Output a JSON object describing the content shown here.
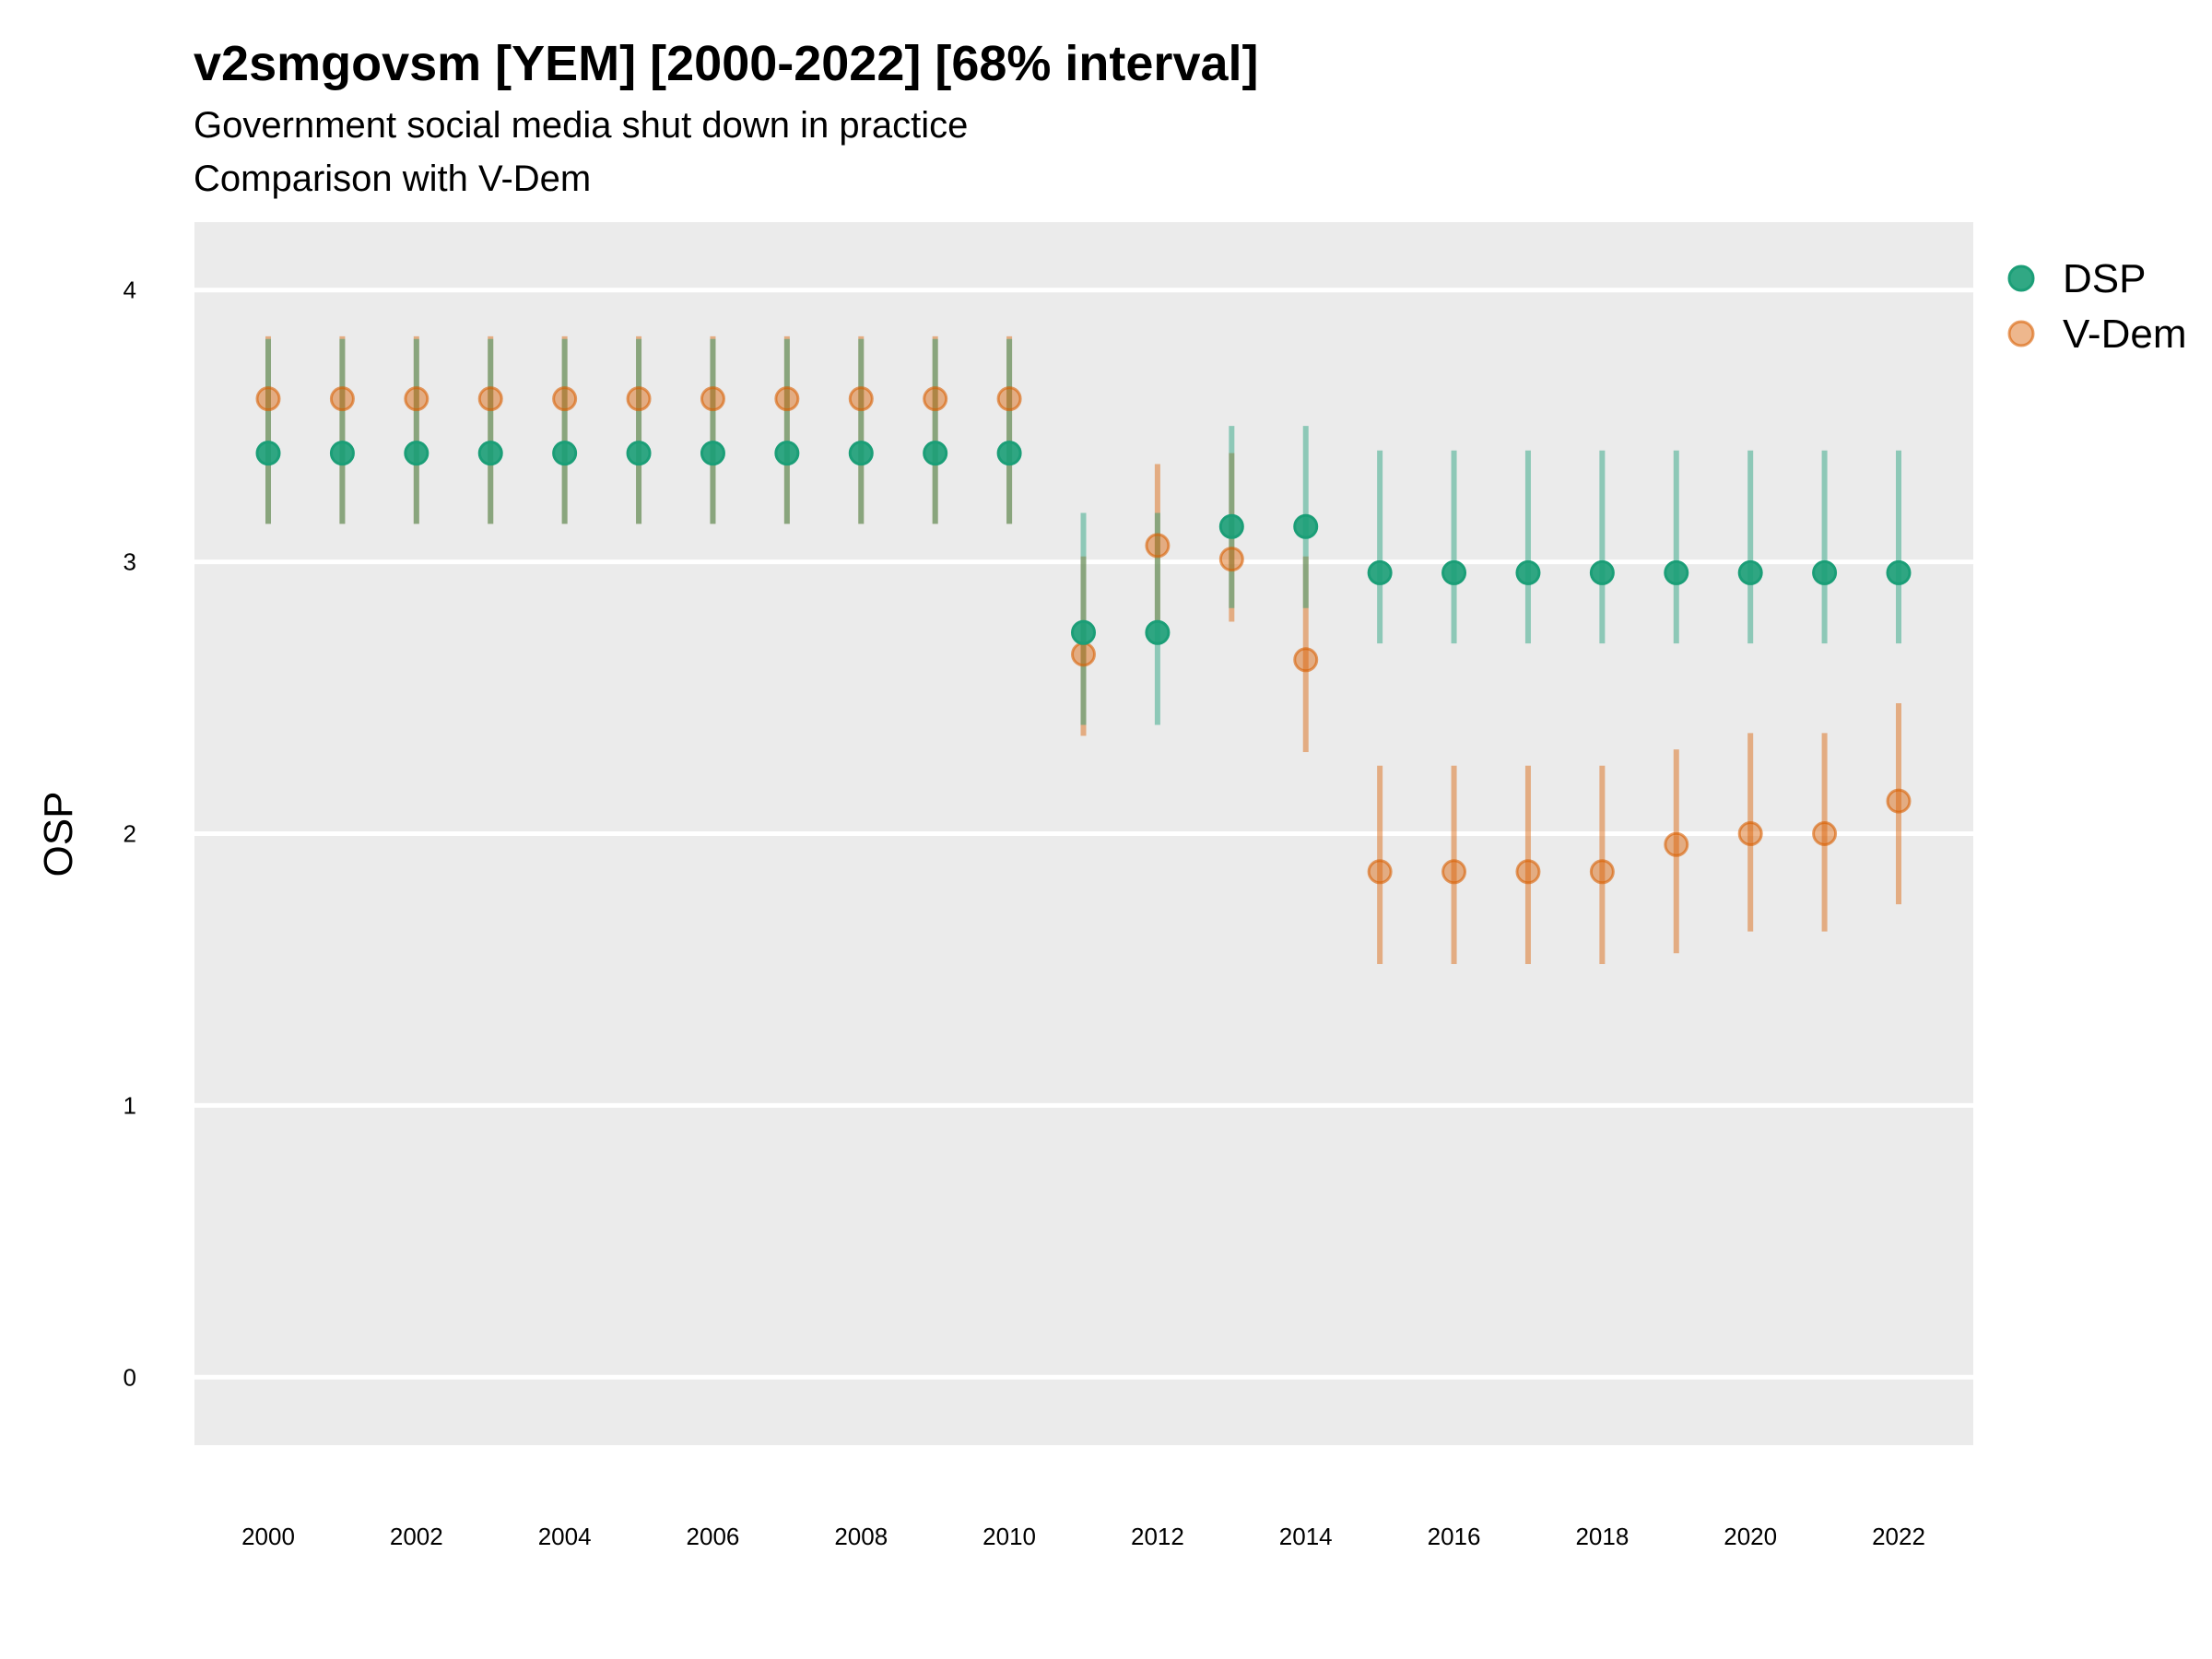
{
  "chart_data": {
    "type": "scatter",
    "title": "v2smgovsm [YEM] [2000-2022] [68% interval]",
    "subtitle": "Government social media shut down in practice",
    "subtitle2": "Comparison with V-Dem",
    "xlabel": "",
    "ylabel": "OSP",
    "ylim": [
      -0.25,
      4.25
    ],
    "yticks": [
      "0",
      "1",
      "2",
      "3",
      "4"
    ],
    "xticks": [
      "2000",
      "2002",
      "2004",
      "2006",
      "2008",
      "2010",
      "2012",
      "2014",
      "2016",
      "2018",
      "2020",
      "2022"
    ],
    "legend_position": "right",
    "x": [
      2000,
      2001,
      2002,
      2003,
      2004,
      2005,
      2006,
      2007,
      2008,
      2009,
      2010,
      2011,
      2012,
      2013,
      2014,
      2015,
      2016,
      2017,
      2018,
      2019,
      2020,
      2021,
      2022
    ],
    "series": [
      {
        "name": "DSP",
        "color": "#1b9e77",
        "values": [
          3.4,
          3.4,
          3.4,
          3.4,
          3.4,
          3.4,
          3.4,
          3.4,
          3.4,
          3.4,
          3.4,
          2.74,
          2.74,
          3.13,
          3.13,
          2.96,
          2.96,
          2.96,
          2.96,
          2.96,
          2.96,
          2.96,
          2.96
        ],
        "lower": [
          3.14,
          3.14,
          3.14,
          3.14,
          3.14,
          3.14,
          3.14,
          3.14,
          3.14,
          3.14,
          3.14,
          2.4,
          2.4,
          2.83,
          2.83,
          2.7,
          2.7,
          2.7,
          2.7,
          2.7,
          2.7,
          2.7,
          2.7
        ],
        "upper": [
          3.82,
          3.82,
          3.82,
          3.82,
          3.82,
          3.82,
          3.82,
          3.82,
          3.82,
          3.82,
          3.82,
          3.18,
          3.18,
          3.5,
          3.5,
          3.41,
          3.41,
          3.41,
          3.41,
          3.41,
          3.41,
          3.41,
          3.41
        ]
      },
      {
        "name": "V-Dem",
        "color": "#d95f02",
        "values": [
          3.6,
          3.6,
          3.6,
          3.6,
          3.6,
          3.6,
          3.6,
          3.6,
          3.6,
          3.6,
          3.6,
          2.66,
          3.06,
          3.01,
          2.64,
          1.86,
          1.86,
          1.86,
          1.86,
          1.96,
          2.0,
          2.0,
          2.12
        ],
        "lower": [
          3.14,
          3.14,
          3.14,
          3.14,
          3.14,
          3.14,
          3.14,
          3.14,
          3.14,
          3.14,
          3.14,
          2.36,
          2.78,
          2.78,
          2.3,
          1.52,
          1.52,
          1.52,
          1.52,
          1.56,
          1.64,
          1.64,
          1.74
        ],
        "upper": [
          3.83,
          3.83,
          3.83,
          3.83,
          3.83,
          3.83,
          3.83,
          3.83,
          3.83,
          3.83,
          3.83,
          3.02,
          3.36,
          3.4,
          3.02,
          2.25,
          2.25,
          2.25,
          2.25,
          2.31,
          2.37,
          2.37,
          2.48
        ]
      }
    ]
  }
}
